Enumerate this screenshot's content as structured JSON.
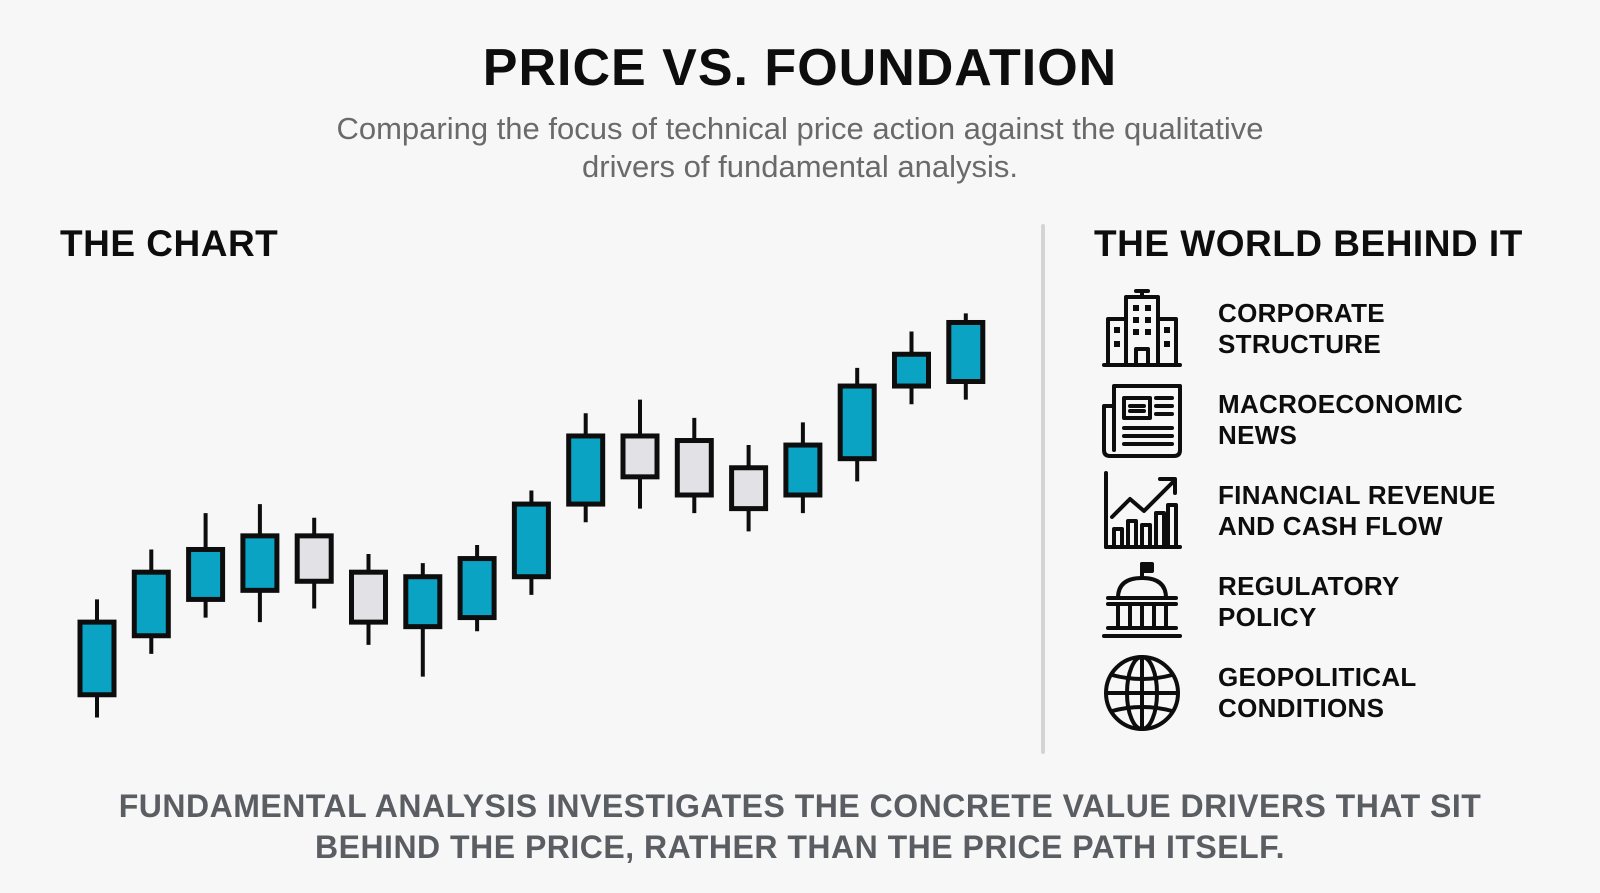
{
  "header": {
    "title": "PRICE VS. FOUNDATION",
    "subtitle": "Comparing the focus of technical price action against the qualitative drivers of fundamental analysis."
  },
  "left_panel": {
    "heading": "THE CHART"
  },
  "right_panel": {
    "heading": "THE WORLD BEHIND IT",
    "drivers": [
      {
        "label": "CORPORATE\nSTRUCTURE",
        "icon": "office-building-icon"
      },
      {
        "label": "MACROECONOMIC\nNEWS",
        "icon": "newspaper-icon"
      },
      {
        "label": "FINANCIAL REVENUE\nAND CASH FLOW",
        "icon": "growth-chart-icon"
      },
      {
        "label": "REGULATORY\nPOLICY",
        "icon": "government-building-icon"
      },
      {
        "label": "GEOPOLITICAL\nCONDITIONS",
        "icon": "globe-icon"
      }
    ]
  },
  "footer": {
    "text": "FUNDAMENTAL ANALYSIS INVESTIGATES THE CONCRETE VALUE DRIVERS THAT SIT BEHIND THE PRICE, RATHER THAN THE PRICE PATH ITSELF."
  },
  "colors": {
    "bullish": "#0aa3c4",
    "bearish": "#e2e2e6",
    "outline": "#0d0d0d",
    "background": "#f7f7f7"
  },
  "chart_data": {
    "type": "candlestick",
    "ylim": [
      0,
      100
    ],
    "candles": [
      {
        "open": 6,
        "close": 22,
        "high": 27,
        "low": 1
      },
      {
        "open": 19,
        "close": 33,
        "high": 38,
        "low": 15
      },
      {
        "open": 27,
        "close": 38,
        "high": 46,
        "low": 23
      },
      {
        "open": 29,
        "close": 41,
        "high": 48,
        "low": 22
      },
      {
        "open": 41,
        "close": 31,
        "high": 45,
        "low": 25
      },
      {
        "open": 33,
        "close": 22,
        "high": 37,
        "low": 17
      },
      {
        "open": 21,
        "close": 32,
        "high": 35,
        "low": 10
      },
      {
        "open": 23,
        "close": 36,
        "high": 39,
        "low": 20
      },
      {
        "open": 32,
        "close": 48,
        "high": 51,
        "low": 28
      },
      {
        "open": 48,
        "close": 63,
        "high": 68,
        "low": 44
      },
      {
        "open": 63,
        "close": 54,
        "high": 71,
        "low": 47
      },
      {
        "open": 62,
        "close": 50,
        "high": 67,
        "low": 46
      },
      {
        "open": 56,
        "close": 47,
        "high": 61,
        "low": 42
      },
      {
        "open": 50,
        "close": 61,
        "high": 66,
        "low": 46
      },
      {
        "open": 58,
        "close": 74,
        "high": 78,
        "low": 53
      },
      {
        "open": 74,
        "close": 81,
        "high": 86,
        "low": 70
      },
      {
        "open": 75,
        "close": 88,
        "high": 90,
        "low": 71
      }
    ]
  }
}
